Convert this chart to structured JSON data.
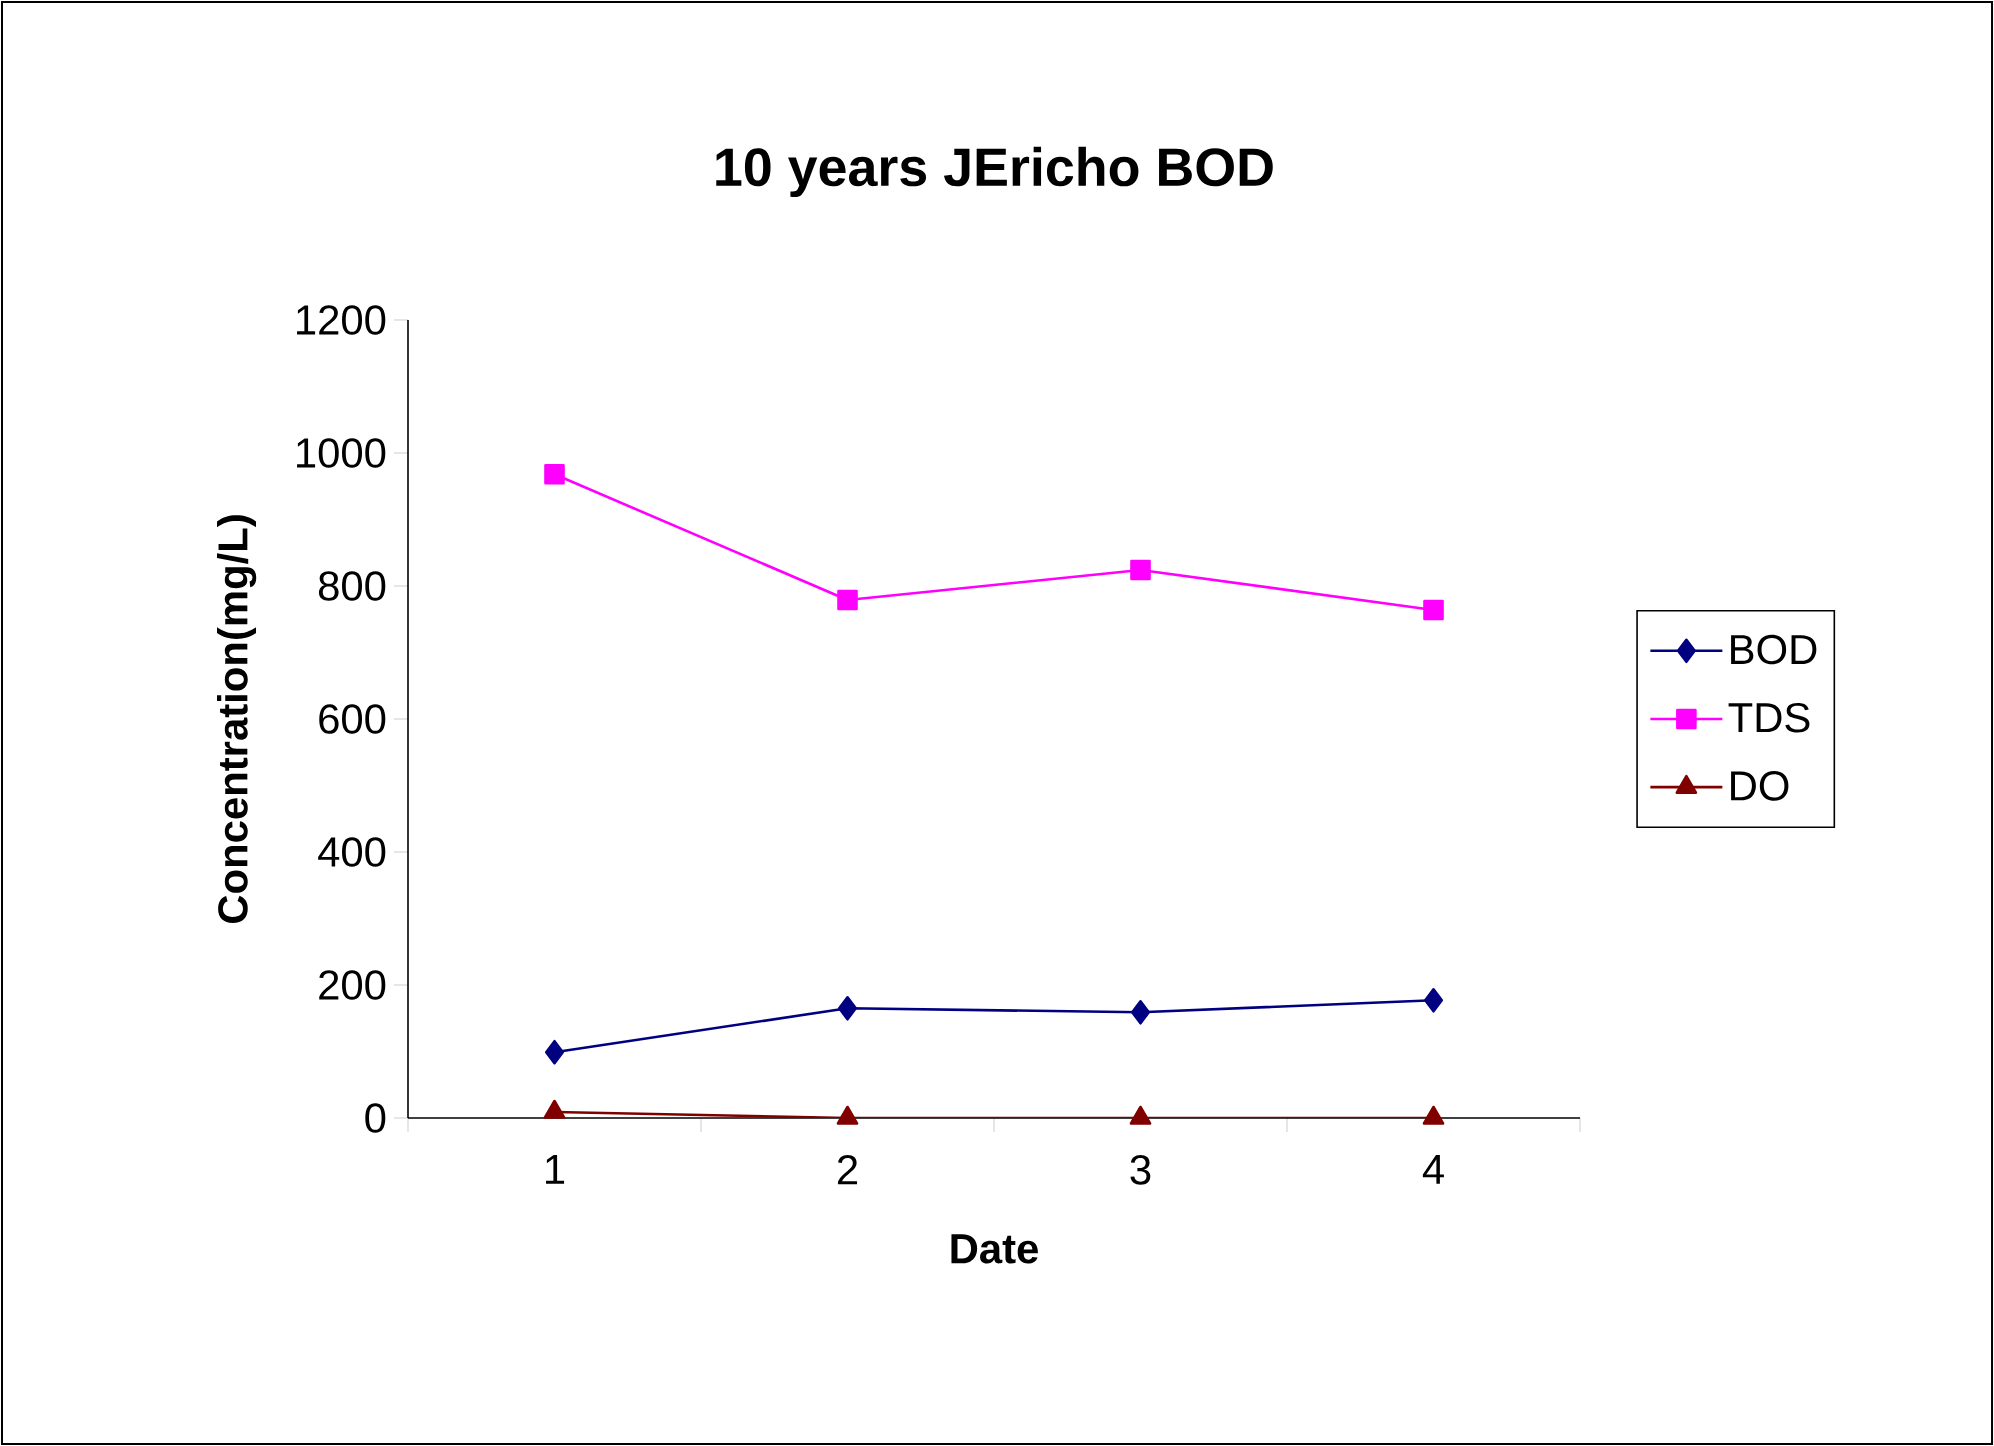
{
  "chart_data": {
    "type": "line",
    "title": "10 years JEricho BOD",
    "xlabel": "Date",
    "ylabel": "Concentration(mg/L)",
    "categories": [
      "1",
      "2",
      "3",
      "4"
    ],
    "series": [
      {
        "name": "BOD",
        "color": "#000080",
        "marker": "diamond",
        "values": [
          99,
          165,
          159,
          177
        ]
      },
      {
        "name": "TDS",
        "color": "#ff00ff",
        "marker": "square",
        "values": [
          968,
          779,
          824,
          764
        ]
      },
      {
        "name": "DO",
        "color": "#800000",
        "marker": "triangle",
        "values": [
          9,
          0,
          0,
          0
        ]
      }
    ],
    "ylim": [
      0,
      1200
    ],
    "yticks": [
      0,
      200,
      400,
      600,
      800,
      1000,
      1200
    ],
    "grid": false,
    "legend": "right",
    "line_style": "solid"
  }
}
